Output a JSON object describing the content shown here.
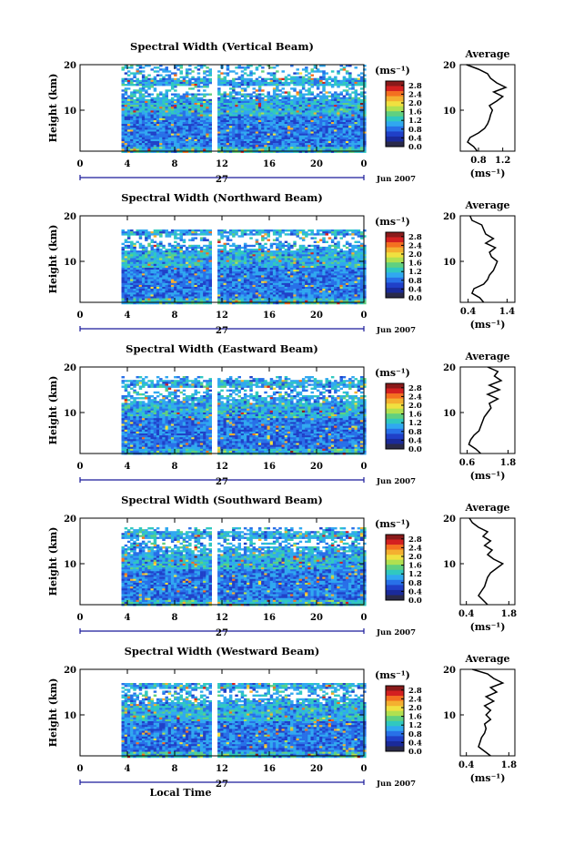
{
  "labels": {
    "ylabel": "Height (km)",
    "avg_title": "Average",
    "unit": "(ms⁻¹)",
    "date_label": "Jun 2007",
    "day_label": "27",
    "xlabel": "Local Time"
  },
  "colors": {
    "scale": [
      "#8a1a1a",
      "#d42020",
      "#f47020",
      "#f4b030",
      "#f0e040",
      "#b0e050",
      "#60d080",
      "#30c8c0",
      "#30a8f0",
      "#2870e8",
      "#2040c8",
      "#1a2a9a",
      "#2a2a4a"
    ]
  },
  "chart_data": [
    {
      "type": "heatmap",
      "title": "Spectral Width (Vertical Beam)",
      "xlabel": "",
      "ylabel": "Height (km)",
      "x_ticks": [
        "0",
        "4",
        "8",
        "12",
        "16",
        "20",
        "0"
      ],
      "xlim": [
        0,
        24
      ],
      "y_ticks": [
        "10",
        "20"
      ],
      "ylim": [
        1,
        20
      ],
      "colorbar": {
        "label": "(ms⁻¹)",
        "ticks": [
          "0.0",
          "0.4",
          "0.8",
          "1.2",
          "1.6",
          "2.0",
          "2.4",
          "2.8"
        ],
        "range": [
          0,
          3.0
        ]
      },
      "data_coverage": {
        "start_hour": 3.5,
        "gap_hours": [
          10.9,
          11.5
        ],
        "top_km": 20
      },
      "average_profile": {
        "title": "Average",
        "xlabel": "(ms⁻¹)",
        "x_ticks": [
          "0.8",
          "1.2"
        ],
        "xlim": [
          0.5,
          1.4
        ],
        "heights": [
          1,
          2,
          3,
          4,
          5,
          6,
          7,
          8,
          9,
          10,
          11,
          12,
          13,
          14,
          15,
          16,
          17,
          18,
          19,
          20
        ],
        "values": [
          0.78,
          0.72,
          0.62,
          0.66,
          0.8,
          0.9,
          0.95,
          0.98,
          1.0,
          1.03,
          0.98,
          1.1,
          1.2,
          1.05,
          1.25,
          1.1,
          1.0,
          0.95,
          0.8,
          0.6
        ]
      }
    },
    {
      "type": "heatmap",
      "title": "Spectral Width (Northward Beam)",
      "xlabel": "",
      "ylabel": "Height (km)",
      "x_ticks": [
        "0",
        "4",
        "8",
        "12",
        "16",
        "20",
        "0"
      ],
      "xlim": [
        0,
        24
      ],
      "y_ticks": [
        "10",
        "20"
      ],
      "ylim": [
        1,
        20
      ],
      "colorbar": {
        "label": "(ms⁻¹)",
        "ticks": [
          "0.0",
          "0.4",
          "0.8",
          "1.2",
          "1.6",
          "2.0",
          "2.4",
          "2.8"
        ],
        "range": [
          0,
          3.0
        ]
      },
      "data_coverage": {
        "start_hour": 3.5,
        "gap_hours": [
          10.9,
          11.5
        ],
        "top_km": 17
      },
      "average_profile": {
        "title": "Average",
        "xlabel": "(ms⁻¹)",
        "x_ticks": [
          "0.4",
          "1.4"
        ],
        "xlim": [
          0.2,
          1.6
        ],
        "heights": [
          1,
          2,
          3,
          4,
          5,
          6,
          7,
          8,
          9,
          10,
          11,
          12,
          13,
          14,
          15,
          16,
          17,
          18,
          19,
          20
        ],
        "values": [
          0.8,
          0.7,
          0.5,
          0.55,
          0.8,
          0.9,
          0.95,
          1.05,
          1.1,
          1.15,
          1.0,
          0.95,
          1.1,
          0.85,
          1.05,
          0.85,
          0.8,
          0.75,
          0.5,
          0.45
        ]
      }
    },
    {
      "type": "heatmap",
      "title": "Spectral Width (Eastward Beam)",
      "xlabel": "",
      "ylabel": "Height (km)",
      "x_ticks": [
        "0",
        "4",
        "8",
        "12",
        "16",
        "20",
        "0"
      ],
      "xlim": [
        0,
        24
      ],
      "y_ticks": [
        "10",
        "20"
      ],
      "ylim": [
        1,
        20
      ],
      "colorbar": {
        "label": "(ms⁻¹)",
        "ticks": [
          "0.0",
          "0.4",
          "0.8",
          "1.2",
          "1.6",
          "2.0",
          "2.4",
          "2.8"
        ],
        "range": [
          0,
          3.0
        ]
      },
      "data_coverage": {
        "start_hour": 3.5,
        "gap_hours": [
          10.9,
          11.5
        ],
        "top_km": 18
      },
      "average_profile": {
        "title": "Average",
        "xlabel": "(ms⁻¹)",
        "x_ticks": [
          "0.6",
          "1.8"
        ],
        "xlim": [
          0.4,
          2.0
        ],
        "heights": [
          1,
          2,
          3,
          4,
          5,
          6,
          7,
          8,
          9,
          10,
          11,
          12,
          13,
          14,
          15,
          16,
          17,
          18,
          19,
          20
        ],
        "values": [
          1.0,
          0.85,
          0.65,
          0.7,
          0.8,
          0.95,
          1.0,
          1.05,
          1.1,
          1.2,
          1.3,
          1.25,
          1.5,
          1.2,
          1.55,
          1.25,
          1.6,
          1.4,
          1.5,
          1.2
        ]
      }
    },
    {
      "type": "heatmap",
      "title": "Spectral Width (Southward Beam)",
      "xlabel": "",
      "ylabel": "Height (km)",
      "x_ticks": [
        "0",
        "4",
        "8",
        "12",
        "16",
        "20",
        "0"
      ],
      "xlim": [
        0,
        24
      ],
      "y_ticks": [
        "10",
        "20"
      ],
      "ylim": [
        1,
        20
      ],
      "colorbar": {
        "label": "(ms⁻¹)",
        "ticks": [
          "0.0",
          "0.4",
          "0.8",
          "1.2",
          "1.6",
          "2.0",
          "2.4",
          "2.8"
        ],
        "range": [
          0,
          3.0
        ]
      },
      "data_coverage": {
        "start_hour": 3.5,
        "gap_hours": [
          10.9,
          11.5
        ],
        "top_km": 18
      },
      "average_profile": {
        "title": "Average",
        "xlabel": "(ms⁻¹)",
        "x_ticks": [
          "0.4",
          "1.8"
        ],
        "xlim": [
          0.2,
          2.0
        ],
        "heights": [
          1,
          2,
          3,
          4,
          5,
          6,
          7,
          8,
          9,
          10,
          11,
          12,
          13,
          14,
          15,
          16,
          17,
          18,
          19,
          20
        ],
        "values": [
          1.1,
          0.95,
          0.8,
          0.9,
          1.0,
          1.05,
          1.1,
          1.2,
          1.4,
          1.6,
          1.3,
          1.1,
          1.25,
          1.0,
          1.2,
          0.95,
          1.1,
          0.8,
          0.6,
          0.5
        ]
      }
    },
    {
      "type": "heatmap",
      "title": "Spectral Width (Westward Beam)",
      "xlabel": "Local Time",
      "ylabel": "Height (km)",
      "x_ticks": [
        "0",
        "4",
        "8",
        "12",
        "16",
        "20",
        "0"
      ],
      "xlim": [
        0,
        24
      ],
      "y_ticks": [
        "10",
        "20"
      ],
      "ylim": [
        1,
        20
      ],
      "colorbar": {
        "label": "(ms⁻¹)",
        "ticks": [
          "0.0",
          "0.4",
          "0.8",
          "1.2",
          "1.6",
          "2.0",
          "2.4",
          "2.8"
        ],
        "range": [
          0,
          3.0
        ]
      },
      "data_coverage": {
        "start_hour": 3.5,
        "gap_hours": [
          10.9,
          11.5
        ],
        "top_km": 17
      },
      "average_profile": {
        "title": "Average",
        "xlabel": "(ms⁻¹)",
        "x_ticks": [
          "0.4",
          "1.8"
        ],
        "xlim": [
          0.2,
          2.0
        ],
        "heights": [
          1,
          2,
          3,
          4,
          5,
          6,
          7,
          8,
          9,
          10,
          11,
          12,
          13,
          14,
          15,
          16,
          17,
          18,
          19,
          20
        ],
        "values": [
          1.2,
          1.0,
          0.8,
          0.85,
          0.9,
          1.0,
          1.05,
          1.0,
          1.2,
          1.05,
          1.2,
          1.0,
          1.3,
          1.05,
          1.4,
          1.2,
          1.6,
          1.3,
          1.1,
          0.6
        ]
      }
    }
  ]
}
